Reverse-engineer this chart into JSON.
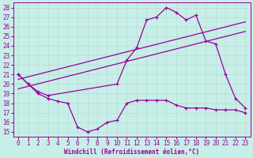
{
  "bg_color": "#c8eee8",
  "line_color": "#990099",
  "xlabel": "Windchill (Refroidissement éolien,°C)",
  "ylim": [
    14.5,
    28.5
  ],
  "xlim": [
    -0.5,
    23.5
  ],
  "yticks": [
    15,
    16,
    17,
    18,
    19,
    20,
    21,
    22,
    23,
    24,
    25,
    26,
    27,
    28
  ],
  "xticks": [
    0,
    1,
    2,
    3,
    4,
    5,
    6,
    7,
    8,
    9,
    10,
    11,
    12,
    13,
    14,
    15,
    16,
    17,
    18,
    19,
    20,
    21,
    22,
    23
  ],
  "line1_x": [
    0,
    1,
    2,
    3,
    10,
    11,
    12,
    13,
    14,
    15,
    16,
    17,
    18,
    19,
    20,
    21,
    22,
    23
  ],
  "line1_y": [
    21.0,
    20.0,
    19.2,
    18.8,
    20.0,
    22.5,
    23.8,
    26.7,
    27.0,
    28.0,
    27.5,
    26.7,
    27.2,
    24.5,
    24.2,
    21.0,
    18.5,
    17.5
  ],
  "line2_x": [
    0,
    1,
    2,
    3,
    4,
    5,
    6,
    7,
    8,
    9,
    10,
    11,
    12,
    13,
    14,
    15,
    16,
    17,
    18,
    19,
    20,
    21,
    22,
    23
  ],
  "line2_y": [
    21.0,
    20.0,
    19.0,
    18.5,
    18.2,
    18.0,
    15.5,
    15.0,
    15.3,
    16.0,
    16.2,
    18.0,
    18.3,
    18.3,
    18.3,
    18.3,
    17.8,
    17.5,
    17.5,
    17.5,
    17.3,
    17.3,
    17.3,
    17.0
  ],
  "line3_x": [
    0,
    23
  ],
  "line3_y": [
    20.5,
    26.5
  ],
  "line4_x": [
    0,
    23
  ],
  "line4_y": [
    19.5,
    25.5
  ],
  "grid_color": "#aaddcc",
  "tick_fontsize": 5.5,
  "xlabel_fontsize": 5.5,
  "lw": 0.9,
  "ms": 3.5
}
